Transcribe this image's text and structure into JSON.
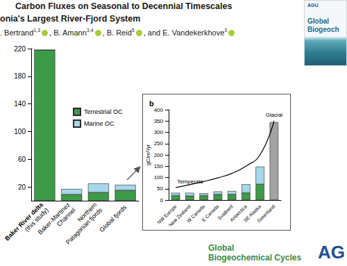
{
  "header": {
    "title_lines": [
      "Carbon Fluxes on Seasonal to Decennial Timescales",
      "onia's Largest River-Fjord System"
    ],
    "authors": [
      {
        "text": ". Bertrand",
        "sup": "1,3"
      },
      {
        "text": ", B. Amann",
        "sup": "3,4"
      },
      {
        "text": ", B. Reid",
        "sup": "5"
      },
      {
        "text": ", and E. Vandekerkhove",
        "sup": "3"
      }
    ]
  },
  "cover": {
    "brand": "AGU",
    "title_lines": [
      "Global",
      "Biogeoch"
    ]
  },
  "footer": {
    "journal_lines": [
      "Global",
      "Biogeochemical Cycles"
    ],
    "publisher": "AG"
  },
  "chart_data": [
    {
      "type": "bar",
      "stacked": true,
      "categories": [
        "Baker River delta\n(this study)",
        "Baker-Martinez\nChannel",
        "Northern\nPatagonian fjords",
        "Global fjords"
      ],
      "series": [
        {
          "name": "Terrestrial OC",
          "color": "#3d9a48",
          "values": [
            218,
            9,
            12,
            15
          ]
        },
        {
          "name": "Marine OC",
          "color": "#a6d7ea",
          "values": [
            0,
            8,
            13,
            8
          ]
        }
      ],
      "ylim": [
        0,
        220
      ],
      "yticks": [
        20,
        60,
        100,
        140,
        180,
        220
      ],
      "grid": false,
      "legend": "right"
    },
    {
      "type": "bar",
      "title": "b",
      "stacked": true,
      "ylabel": "gC/m²/yr",
      "categories": [
        "NW Europe",
        "New Zealand",
        "W Canada",
        "E Canada",
        "Svalbard",
        "Antarctica",
        "SE Alaska",
        "Greenland"
      ],
      "series": [
        {
          "color": "#3d9a48",
          "values": [
            20,
            18,
            20,
            25,
            25,
            32,
            70,
            null
          ]
        },
        {
          "color": "#a6d7ea",
          "values": [
            12,
            14,
            10,
            13,
            15,
            38,
            78,
            null
          ]
        },
        {
          "color": "#a3a3a3",
          "values": [
            null,
            null,
            null,
            null,
            null,
            null,
            null,
            345
          ]
        },
        {
          "type": "line",
          "color": "#000000",
          "values": [
            55,
            68,
            82,
            98,
            118,
            150,
            200,
            350
          ]
        }
      ],
      "annotations": [
        {
          "text": "Temperate",
          "x": "NW Europe"
        },
        {
          "text": "Glacial",
          "x": "Greenland"
        }
      ],
      "ylim": [
        0,
        400
      ],
      "yticks": [
        0,
        50,
        100,
        150,
        200,
        250,
        300,
        350,
        400
      ],
      "grid": false
    }
  ]
}
